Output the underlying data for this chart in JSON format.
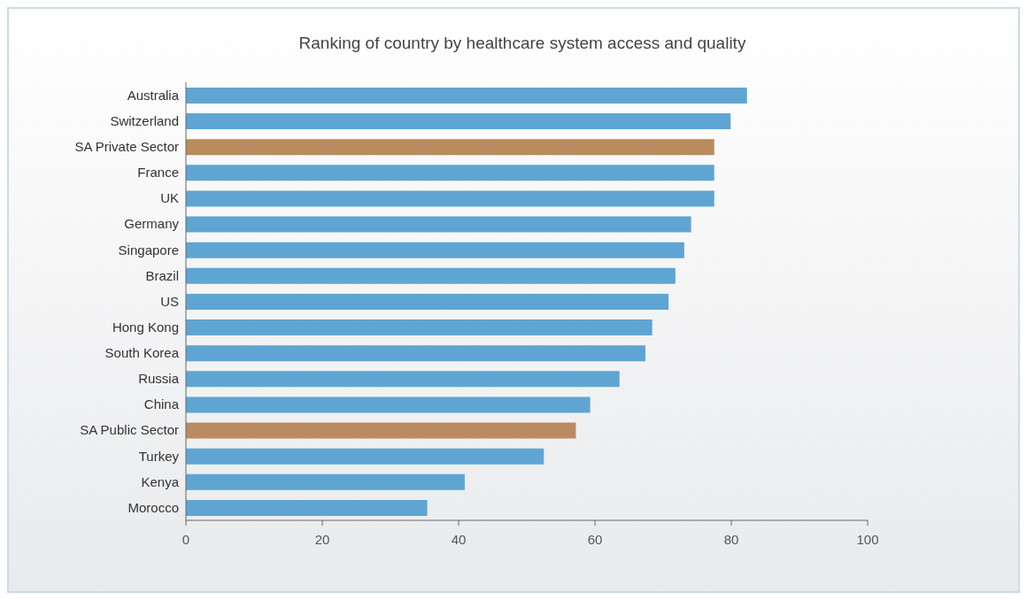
{
  "chart_data": {
    "type": "bar",
    "orientation": "horizontal",
    "title": "Ranking of country by healthcare system access and quality",
    "categories": [
      "Australia",
      "Switzerland",
      "SA Private Sector",
      "France",
      "UK",
      "Germany",
      "Singapore",
      "Brazil",
      "US",
      "Hong Kong",
      "South Korea",
      "Russia",
      "China",
      "SA Public Sector",
      "Turkey",
      "Kenya",
      "Morocco"
    ],
    "values": [
      82.3,
      79.9,
      77.5,
      77.5,
      77.5,
      74.1,
      73.1,
      71.8,
      70.8,
      68.4,
      67.4,
      63.6,
      59.3,
      57.2,
      52.5,
      40.9,
      35.4
    ],
    "colors": [
      "#5fa5d3",
      "#5fa5d3",
      "#b98b5e",
      "#5fa5d3",
      "#5fa5d3",
      "#5fa5d3",
      "#5fa5d3",
      "#5fa5d3",
      "#5fa5d3",
      "#5fa5d3",
      "#5fa5d3",
      "#5fa5d3",
      "#5fa5d3",
      "#b98b5e",
      "#5fa5d3",
      "#5fa5d3",
      "#5fa5d3"
    ],
    "xlim": [
      0,
      100
    ],
    "xticks": [
      0,
      20,
      40,
      60,
      80,
      100
    ],
    "grid": false,
    "legend": false
  }
}
